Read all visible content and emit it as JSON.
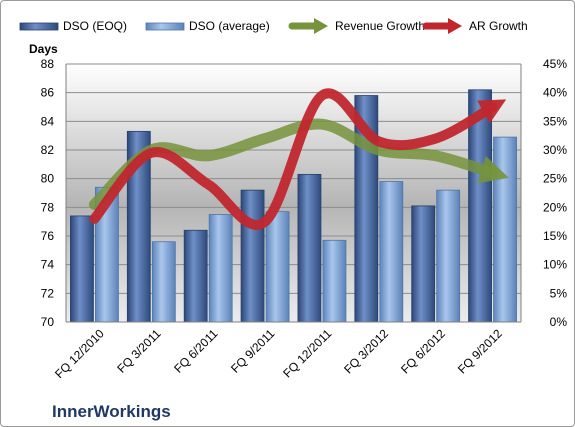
{
  "chart_data": {
    "type": "bar",
    "company": "InnerWorkings",
    "ylabel_left": "Days",
    "categories": [
      "FQ 12/2010",
      "FQ 3/2011",
      "FQ 6/2011",
      "FQ 9/2011",
      "FQ 12/2011",
      "FQ 3/2012",
      "FQ 6/2012",
      "FQ 9/2012"
    ],
    "ylim_left": [
      70,
      88
    ],
    "yticks_left": [
      "70",
      "72",
      "74",
      "76",
      "78",
      "80",
      "82",
      "84",
      "86",
      "88"
    ],
    "ylim_right": [
      0,
      45
    ],
    "yticks_right": [
      "0%",
      "5%",
      "10%",
      "15%",
      "20%",
      "25%",
      "30%",
      "35%",
      "40%",
      "45%"
    ],
    "grid": "horizontal",
    "legend_position": "top",
    "series": [
      {
        "name": "DSO (EOQ)",
        "type": "bar",
        "axis": "left",
        "color": "#4f6fa8",
        "values": [
          77.4,
          83.3,
          76.4,
          79.2,
          80.3,
          85.8,
          78.1,
          86.2
        ]
      },
      {
        "name": "DSO (average)",
        "type": "bar",
        "axis": "left",
        "color": "#8db3e2",
        "values": [
          79.4,
          75.6,
          77.5,
          77.7,
          75.7,
          79.8,
          79.2,
          82.9
        ]
      },
      {
        "name": "Revenue Growth",
        "type": "line",
        "axis": "right",
        "unit": "%",
        "color": "#77933c",
        "values": [
          20.5,
          30,
          29,
          32,
          34.5,
          30,
          29,
          26
        ]
      },
      {
        "name": "AR Growth",
        "type": "line",
        "axis": "right",
        "unit": "%",
        "color": "#c0272d",
        "values": [
          18,
          29.5,
          24,
          17.5,
          39.5,
          31.5,
          32,
          37.5
        ]
      }
    ]
  }
}
